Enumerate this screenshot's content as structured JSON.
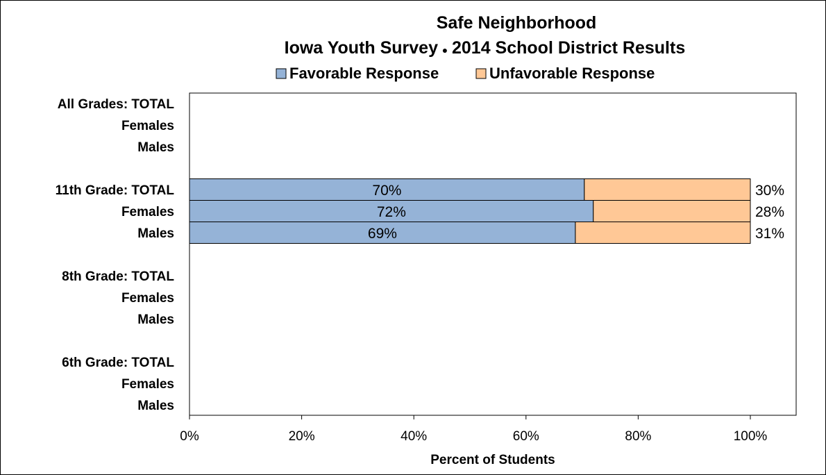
{
  "chart_data": {
    "type": "bar",
    "orientation": "horizontal",
    "stacked": true,
    "title_lines": [
      "Safe Neighborhood",
      "Iowa Youth Survey",
      "2014 School District Results"
    ],
    "title_separator": "●",
    "xlabel": "Percent of Students",
    "ylabel": "",
    "xlim": [
      0,
      100
    ],
    "x_ticks": [
      "0%",
      "20%",
      "40%",
      "60%",
      "80%",
      "100%"
    ],
    "x_tick_values": [
      0,
      20,
      40,
      60,
      80,
      100
    ],
    "legend_position": "top",
    "grid": false,
    "categories": [
      "All Grades:  TOTAL",
      "Females",
      "Males",
      "",
      "11th Grade:  TOTAL",
      "Females",
      "Males",
      "",
      "8th Grade:  TOTAL",
      "Females",
      "Males",
      "",
      "6th Grade:  TOTAL",
      "Females",
      "Males"
    ],
    "series": [
      {
        "name": "Favorable Response",
        "color": "#95B3D7",
        "values": [
          null,
          null,
          null,
          null,
          70.4,
          72.0,
          68.8,
          null,
          null,
          null,
          null,
          null,
          null,
          null,
          null
        ],
        "labels": [
          "",
          "",
          "",
          "",
          "70%",
          "72%",
          "69%",
          "",
          "",
          "",
          "",
          "",
          "",
          "",
          ""
        ]
      },
      {
        "name": "Unfavorable Response",
        "color": "#FFC896",
        "values": [
          null,
          null,
          null,
          null,
          29.6,
          28.0,
          31.2,
          null,
          null,
          null,
          null,
          null,
          null,
          null,
          null
        ],
        "labels": [
          "",
          "",
          "",
          "",
          "30%",
          "28%",
          "31%",
          "",
          "",
          "",
          "",
          "",
          "",
          "",
          ""
        ]
      }
    ]
  }
}
